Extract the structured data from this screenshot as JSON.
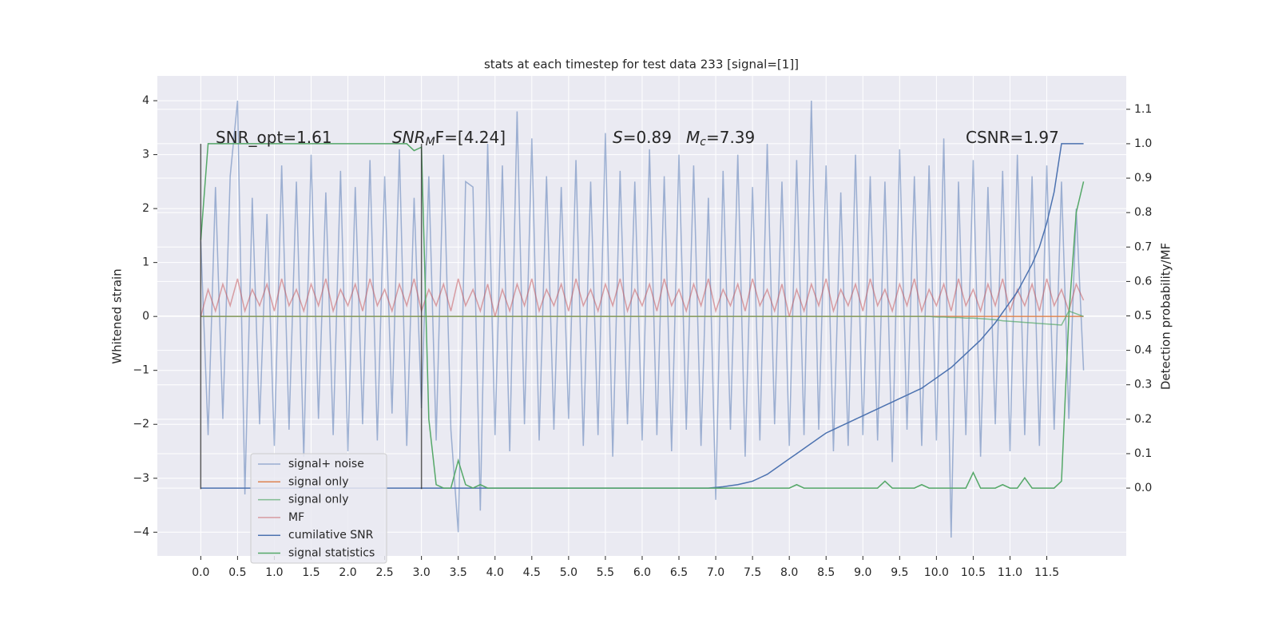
{
  "chart_data": {
    "type": "line",
    "title": "stats at each timestep for test data 233 [signal=[1]]",
    "ylabel": "Whitened strain",
    "y2label": "Detection probability/MF",
    "annotations": [
      [
        "SNR_opt=1.61"
      ],
      [
        "SNR",
        "M",
        "F=[4.24]"
      ],
      [
        "S",
        "=0.89"
      ],
      [
        "M",
        "c",
        "=7.39"
      ],
      [
        "CSNR=1.97"
      ]
    ],
    "xlim": [
      -0.59,
      12.58
    ],
    "ylim": [
      -4.44,
      4.46
    ],
    "y2lim": [
      -0.197,
      1.197
    ],
    "xticks": [
      {
        "value": 0,
        "label": "0.0"
      },
      0.5,
      {
        "value": 1,
        "label": "1.0"
      },
      1.5,
      {
        "value": 2,
        "label": "2.0"
      },
      2.5,
      {
        "value": 3,
        "label": "3.0"
      },
      3.5,
      {
        "value": 4,
        "label": "4.0"
      },
      4.5,
      {
        "value": 5,
        "label": "5.0"
      },
      5.5,
      {
        "value": 6,
        "label": "6.0"
      },
      6.5,
      {
        "value": 7,
        "label": "7.0"
      },
      7.5,
      {
        "value": 8,
        "label": "8.0"
      },
      8.5,
      {
        "value": 9,
        "label": "9.0"
      },
      9.5,
      {
        "value": 10,
        "label": "10.0"
      },
      10.5,
      {
        "value": 11,
        "label": "11.0"
      },
      11.5
    ],
    "yticks": [
      {
        "value": -4,
        "label": "−4"
      },
      {
        "value": -3,
        "label": "−3"
      },
      {
        "value": -2,
        "label": "−2"
      },
      {
        "value": -1,
        "label": "−1"
      },
      0,
      1,
      2,
      3,
      4
    ],
    "y2ticks": [
      {
        "value": 0,
        "label": "0.0"
      },
      0.1,
      0.2,
      0.3,
      0.4,
      0.5,
      0.6,
      0.7,
      0.8,
      0.9,
      {
        "value": 1,
        "label": "1.0"
      },
      1.1
    ],
    "grid": true,
    "legend": "lower left",
    "vlines": [
      {
        "x": 0,
        "ymin": -3.2,
        "ymax": 3.2
      },
      {
        "x": 3.0,
        "ymin": -3.2,
        "ymax": 3.2
      }
    ],
    "x": [
      0,
      0.1,
      0.2,
      0.3,
      0.4,
      0.5,
      0.6,
      0.7,
      0.8,
      0.9,
      1,
      1.1,
      1.2,
      1.3,
      1.4,
      1.5,
      1.6,
      1.7,
      1.8,
      1.9,
      2,
      2.1,
      2.2,
      2.3,
      2.4,
      2.5,
      2.6,
      2.7,
      2.8,
      2.9,
      3,
      3.1,
      3.2,
      3.3,
      3.4,
      3.5,
      3.6,
      3.7,
      3.8,
      3.9,
      4,
      4.1,
      4.2,
      4.3,
      4.4,
      4.5,
      4.6,
      4.7,
      4.8,
      4.9,
      5,
      5.1,
      5.2,
      5.3,
      5.4,
      5.5,
      5.6,
      5.7,
      5.8,
      5.9,
      6,
      6.1,
      6.2,
      6.3,
      6.4,
      6.5,
      6.6,
      6.7,
      6.8,
      6.9,
      7,
      7.1,
      7.2,
      7.3,
      7.4,
      7.5,
      7.6,
      7.7,
      7.8,
      7.9,
      8,
      8.1,
      8.2,
      8.3,
      8.4,
      8.5,
      8.6,
      8.7,
      8.8,
      8.9,
      9,
      9.1,
      9.2,
      9.3,
      9.4,
      9.5,
      9.6,
      9.7,
      9.8,
      9.9,
      10,
      10.1,
      10.2,
      10.3,
      10.4,
      10.5,
      10.6,
      10.7,
      10.8,
      10.9,
      11,
      11.1,
      11.2,
      11.3,
      11.4,
      11.5,
      11.6,
      11.7,
      11.8,
      11.9,
      12
    ],
    "series": [
      {
        "name": "signal+ noise",
        "color": "#4c72b0",
        "opacity": 0.5,
        "values": [
          1.4,
          -2.2,
          2.4,
          -1.9,
          2.6,
          4.0,
          -3.3,
          2.2,
          -2.0,
          1.9,
          -2.4,
          2.8,
          -2.1,
          2.5,
          -2.6,
          3.0,
          -1.9,
          2.3,
          -2.2,
          2.7,
          -2.5,
          2.4,
          -2.0,
          2.9,
          -2.3,
          2.6,
          -1.8,
          3.1,
          -2.4,
          2.2,
          -1.7,
          2.6,
          -2.3,
          3.0,
          -2.1,
          -4.0,
          2.5,
          2.4,
          -3.6,
          3.2,
          -2.2,
          2.8,
          -2.5,
          3.8,
          -2.0,
          3.3,
          -2.3,
          2.6,
          -2.1,
          2.4,
          -1.9,
          2.9,
          -2.4,
          2.5,
          -2.2,
          3.4,
          -2.6,
          2.7,
          -2.0,
          2.5,
          -2.3,
          3.1,
          -2.2,
          2.6,
          -2.5,
          3.0,
          -2.1,
          2.8,
          -2.4,
          2.2,
          -3.4,
          2.7,
          -2.1,
          3.0,
          -2.6,
          2.4,
          -2.3,
          3.2,
          -2.0,
          2.5,
          -2.4,
          2.9,
          -2.2,
          4.0,
          -2.1,
          2.8,
          -2.5,
          2.3,
          -2.4,
          3.0,
          -2.2,
          2.6,
          -2.3,
          2.5,
          -2.7,
          3.1,
          -2.1,
          2.6,
          -2.4,
          2.8,
          -2.3,
          3.3,
          -4.1,
          2.5,
          -2.2,
          2.9,
          -2.6,
          2.4,
          -2.0,
          2.7,
          -2.5,
          3.0,
          -2.2,
          2.6,
          -2.4,
          2.8,
          -2.1,
          2.5,
          -1.9,
          2.0,
          -1.0
        ]
      },
      {
        "name": "signal only",
        "color": "#dd8452",
        "opacity": 1,
        "values": [
          0,
          0,
          0,
          0,
          0,
          0,
          0,
          0,
          0,
          0,
          0,
          0,
          0,
          0,
          0,
          0,
          0,
          0,
          0,
          0,
          0,
          0,
          0,
          0,
          0,
          0,
          0,
          0,
          0,
          0,
          0,
          0,
          0,
          0,
          0,
          0,
          0,
          0,
          0,
          0,
          0,
          0,
          0,
          0,
          0,
          0,
          0,
          0,
          0,
          0,
          0,
          0,
          0,
          0,
          0,
          0,
          0,
          0,
          0,
          0,
          0,
          0,
          0,
          0,
          0,
          0,
          0,
          0,
          0,
          0,
          0,
          0,
          0,
          0,
          0,
          0,
          0,
          0,
          0,
          0,
          0,
          0,
          0,
          0,
          0,
          0,
          0,
          0,
          0,
          0,
          0,
          0,
          0,
          0,
          0,
          0,
          0,
          0,
          0,
          0,
          0,
          0,
          0,
          0,
          0,
          0,
          0,
          0,
          0,
          0,
          0,
          0,
          0,
          0,
          0,
          0,
          0,
          0,
          0,
          0,
          0
        ]
      },
      {
        "name": "signal only",
        "color": "#55a868",
        "opacity": 0.7,
        "values": [
          0,
          0,
          0,
          0,
          0,
          0,
          0,
          0,
          0,
          0,
          0,
          0,
          0,
          0,
          0,
          0,
          0,
          0,
          0,
          0,
          0,
          0,
          0,
          0,
          0,
          0,
          0,
          0,
          0,
          0,
          0,
          0,
          0,
          0,
          0,
          0,
          0,
          0,
          0,
          0,
          0,
          0,
          0,
          0,
          0,
          0,
          0,
          0,
          0,
          0,
          0,
          0,
          0,
          0,
          0,
          0,
          0,
          0,
          0,
          0,
          0,
          0,
          0,
          0,
          0,
          0,
          0,
          0,
          0,
          0,
          0,
          0,
          0,
          0,
          0,
          0,
          0,
          0,
          0,
          0,
          0,
          0,
          0,
          0,
          0,
          0,
          0,
          0,
          0,
          0,
          0,
          0,
          0,
          0,
          0,
          0,
          0,
          0,
          0,
          0,
          -0.01,
          -0.01,
          -0.02,
          -0.02,
          -0.03,
          -0.03,
          -0.04,
          -0.05,
          -0.06,
          -0.08,
          -0.09,
          -0.1,
          -0.11,
          -0.12,
          -0.13,
          -0.14,
          -0.15,
          -0.16,
          0.1,
          0.05,
          0
        ]
      },
      {
        "name": "MF",
        "color": "#c44e52",
        "opacity": 0.5,
        "values": [
          0.0,
          0.5,
          0.1,
          0.6,
          0.2,
          0.7,
          0.1,
          0.5,
          0.2,
          0.6,
          0.1,
          0.7,
          0.2,
          0.5,
          0.1,
          0.6,
          0.2,
          0.7,
          0.1,
          0.5,
          0.2,
          0.6,
          0.1,
          0.7,
          0.2,
          0.5,
          0.1,
          0.6,
          0.2,
          0.7,
          0.1,
          0.5,
          0.2,
          0.6,
          0.1,
          0.7,
          0.2,
          0.5,
          0.1,
          0.6,
          0.0,
          0.5,
          0.1,
          0.6,
          0.2,
          0.7,
          0.1,
          0.5,
          0.2,
          0.6,
          0.1,
          0.7,
          0.2,
          0.5,
          0.1,
          0.6,
          0.2,
          0.7,
          0.1,
          0.5,
          0.2,
          0.6,
          0.1,
          0.7,
          0.2,
          0.5,
          0.1,
          0.6,
          0.2,
          0.7,
          0.1,
          0.5,
          0.2,
          0.6,
          0.1,
          0.7,
          0.2,
          0.5,
          0.1,
          0.6,
          0.0,
          0.5,
          0.1,
          0.6,
          0.2,
          0.7,
          0.1,
          0.5,
          0.2,
          0.6,
          0.1,
          0.7,
          0.2,
          0.5,
          0.1,
          0.6,
          0.2,
          0.7,
          0.1,
          0.5,
          0.2,
          0.6,
          0.1,
          0.7,
          0.2,
          0.5,
          0.1,
          0.6,
          0.2,
          0.7,
          0.1,
          0.5,
          0.2,
          0.6,
          0.1,
          0.7,
          0.2,
          0.5,
          0.1,
          0.6,
          0.3
        ]
      },
      {
        "name": "cumilative SNR",
        "color": "#4c72b0",
        "opacity": 1,
        "axis": "y2",
        "values": [
          0,
          0,
          0,
          0,
          0,
          0,
          0,
          0,
          0,
          0,
          0,
          0,
          0,
          0,
          0,
          0,
          0,
          0,
          0,
          0,
          0,
          0,
          0,
          0,
          0,
          0,
          0,
          0,
          0,
          0,
          0,
          0,
          0,
          0,
          0,
          0,
          0,
          0,
          0,
          0,
          0,
          0,
          0,
          0,
          0,
          0,
          0,
          0,
          0,
          0,
          0,
          0,
          0,
          0,
          0,
          0,
          0,
          0,
          0,
          0,
          0,
          0,
          0,
          0,
          0,
          0,
          0,
          0,
          0,
          0,
          0.002,
          0.004,
          0.007,
          0.01,
          0.015,
          0.02,
          0.03,
          0.04,
          0.055,
          0.07,
          0.085,
          0.1,
          0.115,
          0.13,
          0.145,
          0.16,
          0.17,
          0.18,
          0.19,
          0.2,
          0.21,
          0.22,
          0.23,
          0.24,
          0.25,
          0.26,
          0.27,
          0.28,
          0.29,
          0.305,
          0.32,
          0.335,
          0.35,
          0.37,
          0.39,
          0.41,
          0.43,
          0.455,
          0.48,
          0.51,
          0.54,
          0.57,
          0.61,
          0.65,
          0.7,
          0.77,
          0.86,
          1.0,
          1.0,
          1.0,
          1.0
        ]
      },
      {
        "name": "signal statistics",
        "color": "#55a868",
        "opacity": 1,
        "axis": "y2",
        "values": [
          0.72,
          1.0,
          1.0,
          1.0,
          1.0,
          1.0,
          1.0,
          1.0,
          1.0,
          1.0,
          1.0,
          1.0,
          1.0,
          1.0,
          1.0,
          1.0,
          1.0,
          1.0,
          1.0,
          1.0,
          1.0,
          1.0,
          1.0,
          1.0,
          1.0,
          1.0,
          1.0,
          1.0,
          1.0,
          0.98,
          0.99,
          0.2,
          0.01,
          0.0,
          0.0,
          0.08,
          0.01,
          0.0,
          0.01,
          0.0,
          0,
          0,
          0,
          0,
          0,
          0,
          0,
          0,
          0,
          0,
          0,
          0,
          0,
          0,
          0,
          0,
          0,
          0,
          0,
          0,
          0,
          0,
          0,
          0,
          0,
          0,
          0,
          0,
          0,
          0,
          0,
          0,
          0,
          0,
          0,
          0,
          0,
          0,
          0,
          0,
          0,
          0.01,
          0,
          0,
          0,
          0,
          0,
          0,
          0,
          0,
          0,
          0,
          0,
          0.02,
          0,
          0,
          0,
          0,
          0.01,
          0,
          0,
          0,
          0,
          0,
          0,
          0.045,
          0,
          0,
          0,
          0.01,
          0,
          0,
          0.03,
          0,
          0,
          0,
          0,
          0.02,
          0.5,
          0.8,
          0.89
        ]
      }
    ]
  }
}
